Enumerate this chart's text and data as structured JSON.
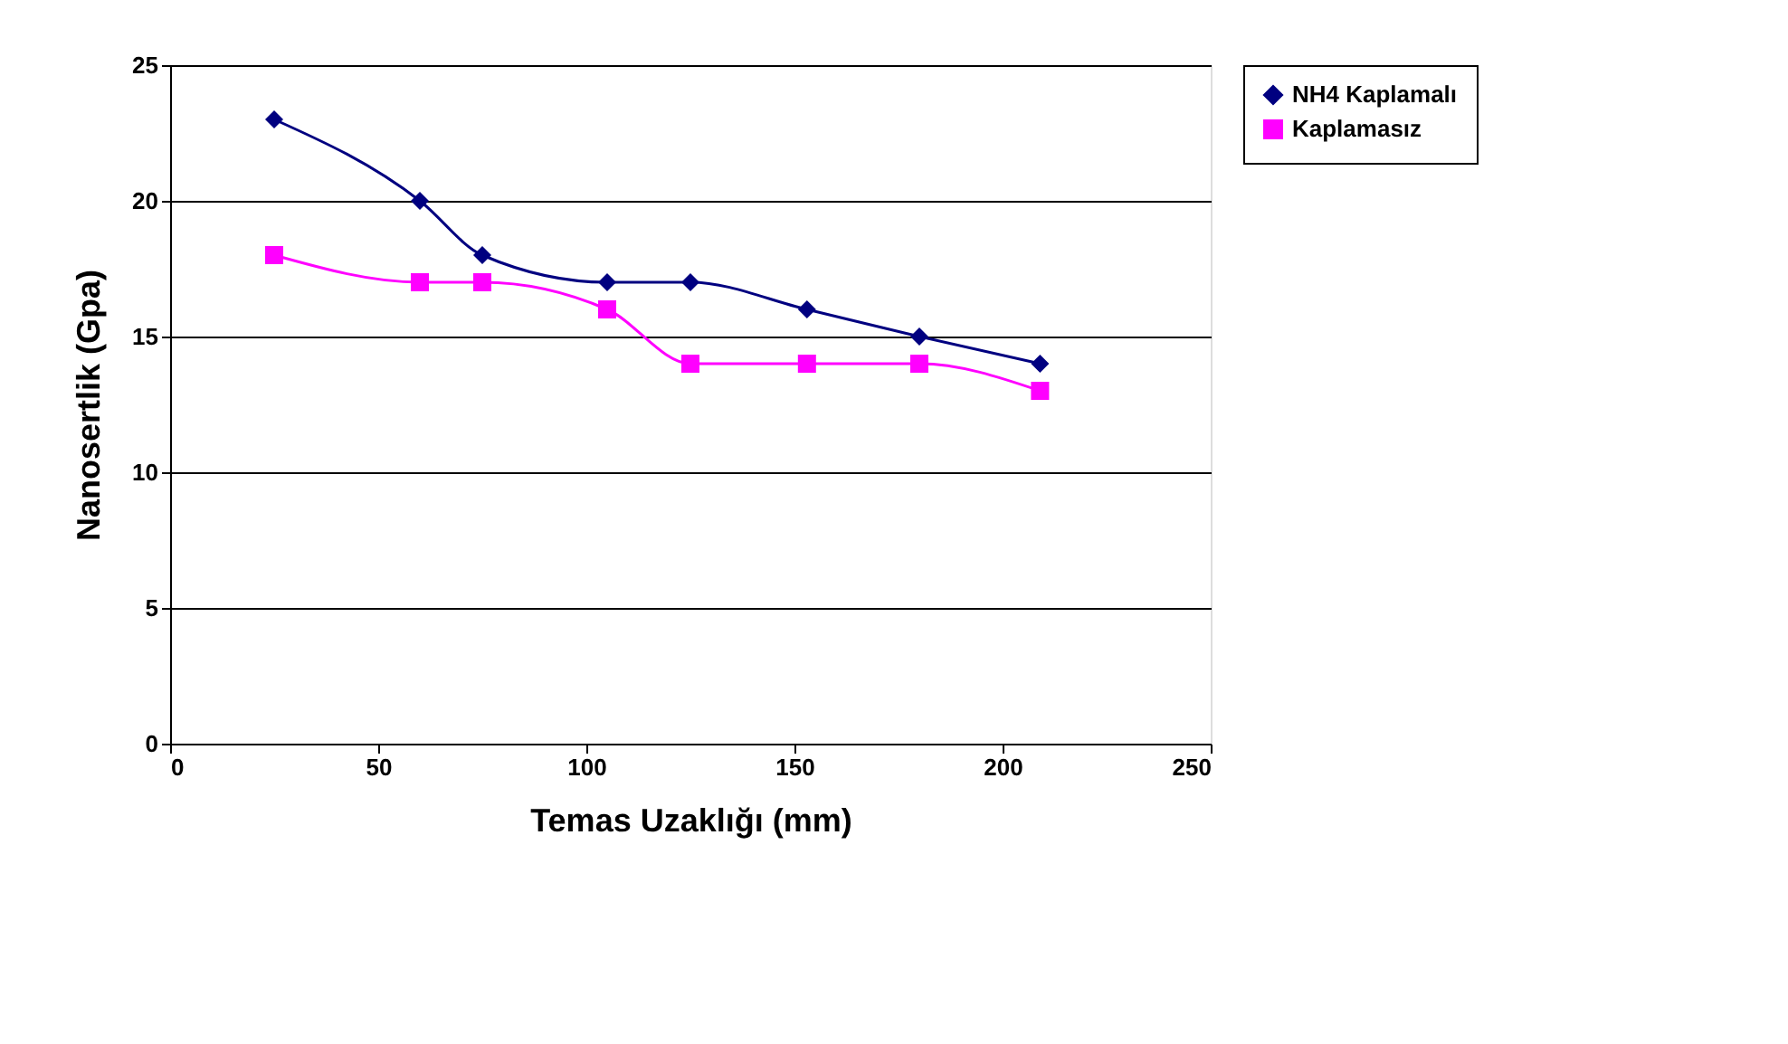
{
  "chart_data": {
    "type": "line",
    "xlabel": "Temas Uzaklığı (mm)",
    "ylabel": "Nanosertlik (Gpa)",
    "x": [
      25,
      60,
      75,
      105,
      125,
      153,
      180,
      209
    ],
    "series": [
      {
        "name": "NH4 Kaplamalı",
        "color": "#000080",
        "marker": "diamond",
        "values": [
          23,
          20,
          18,
          17,
          17,
          16,
          15,
          14
        ]
      },
      {
        "name": "Kaplamasız",
        "color": "#ff00ff",
        "marker": "square",
        "values": [
          18,
          17,
          17,
          16,
          14,
          14,
          14,
          13
        ]
      }
    ],
    "xlim": [
      0,
      250
    ],
    "xticks": [
      0,
      50,
      100,
      150,
      200,
      250
    ],
    "ylim": [
      0,
      25
    ],
    "yticks": [
      0,
      5,
      10,
      15,
      20,
      25
    ],
    "grid": "y",
    "legend": "right",
    "line_style": "solid"
  }
}
